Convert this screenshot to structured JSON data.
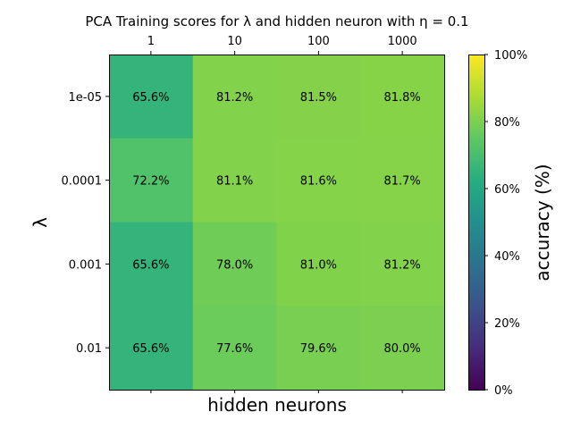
{
  "chart_data": {
    "type": "heatmap",
    "title": "PCA Training scores for λ and hidden neuron with η = 0.1",
    "xlabel": "hidden neurons",
    "ylabel": "λ",
    "x_categories": [
      "1",
      "10",
      "100",
      "1000"
    ],
    "y_categories": [
      "1e-05",
      "0.0001",
      "0.001",
      "0.01"
    ],
    "values": [
      [
        65.6,
        81.2,
        81.5,
        81.8
      ],
      [
        72.2,
        81.1,
        81.6,
        81.7
      ],
      [
        65.6,
        78.0,
        81.0,
        81.2
      ],
      [
        65.6,
        77.6,
        79.6,
        80.0
      ]
    ],
    "cell_labels": [
      [
        "65.6%",
        "81.2%",
        "81.5%",
        "81.8%"
      ],
      [
        "72.2%",
        "81.1%",
        "81.6%",
        "81.7%"
      ],
      [
        "65.6%",
        "78.0%",
        "81.0%",
        "81.2%"
      ],
      [
        "65.6%",
        "77.6%",
        "79.6%",
        "80.0%"
      ]
    ],
    "colorbar": {
      "label": "accuracy (%)",
      "range": [
        0,
        100
      ],
      "ticks": [
        0,
        20,
        40,
        60,
        80,
        100
      ],
      "tick_labels": [
        "0%",
        "20%",
        "40%",
        "60%",
        "80%",
        "100%"
      ],
      "colormap": "viridis"
    }
  }
}
